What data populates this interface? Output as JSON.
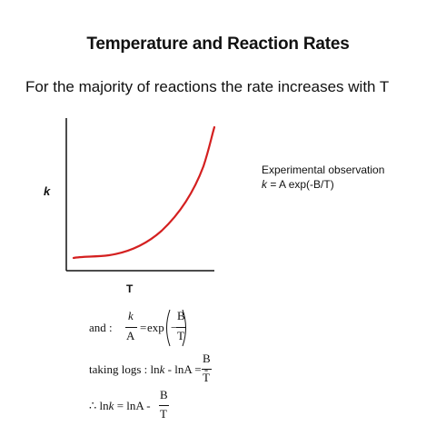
{
  "slide": {
    "title": "Temperature and Reaction Rates",
    "intro": "For the majority of reactions the rate increases with T"
  },
  "graph": {
    "ylabel": "k",
    "xlabel": "T",
    "curve_color": "#d42020"
  },
  "observation": {
    "line1": "Experimental observation",
    "line2_var": "k",
    "line2_rest": " = A exp(-B/T)"
  },
  "equations": {
    "eq1": {
      "prefix": "and :",
      "num_k": "k",
      "den_A": "A",
      "equals": "=",
      "exp": "exp",
      "minus": "−",
      "num_B": "B",
      "den_T": "T"
    },
    "eq2": {
      "prefix": "taking logs :  ln",
      "var_k": "k",
      "middle": " - lnA  = -",
      "num_B": "B",
      "den_T": "T"
    },
    "eq3": {
      "therefore": "∴",
      "ln": " ln",
      "var_k": "k",
      "rest": " = lnA -",
      "num_B": "B",
      "den_T": "T"
    }
  }
}
